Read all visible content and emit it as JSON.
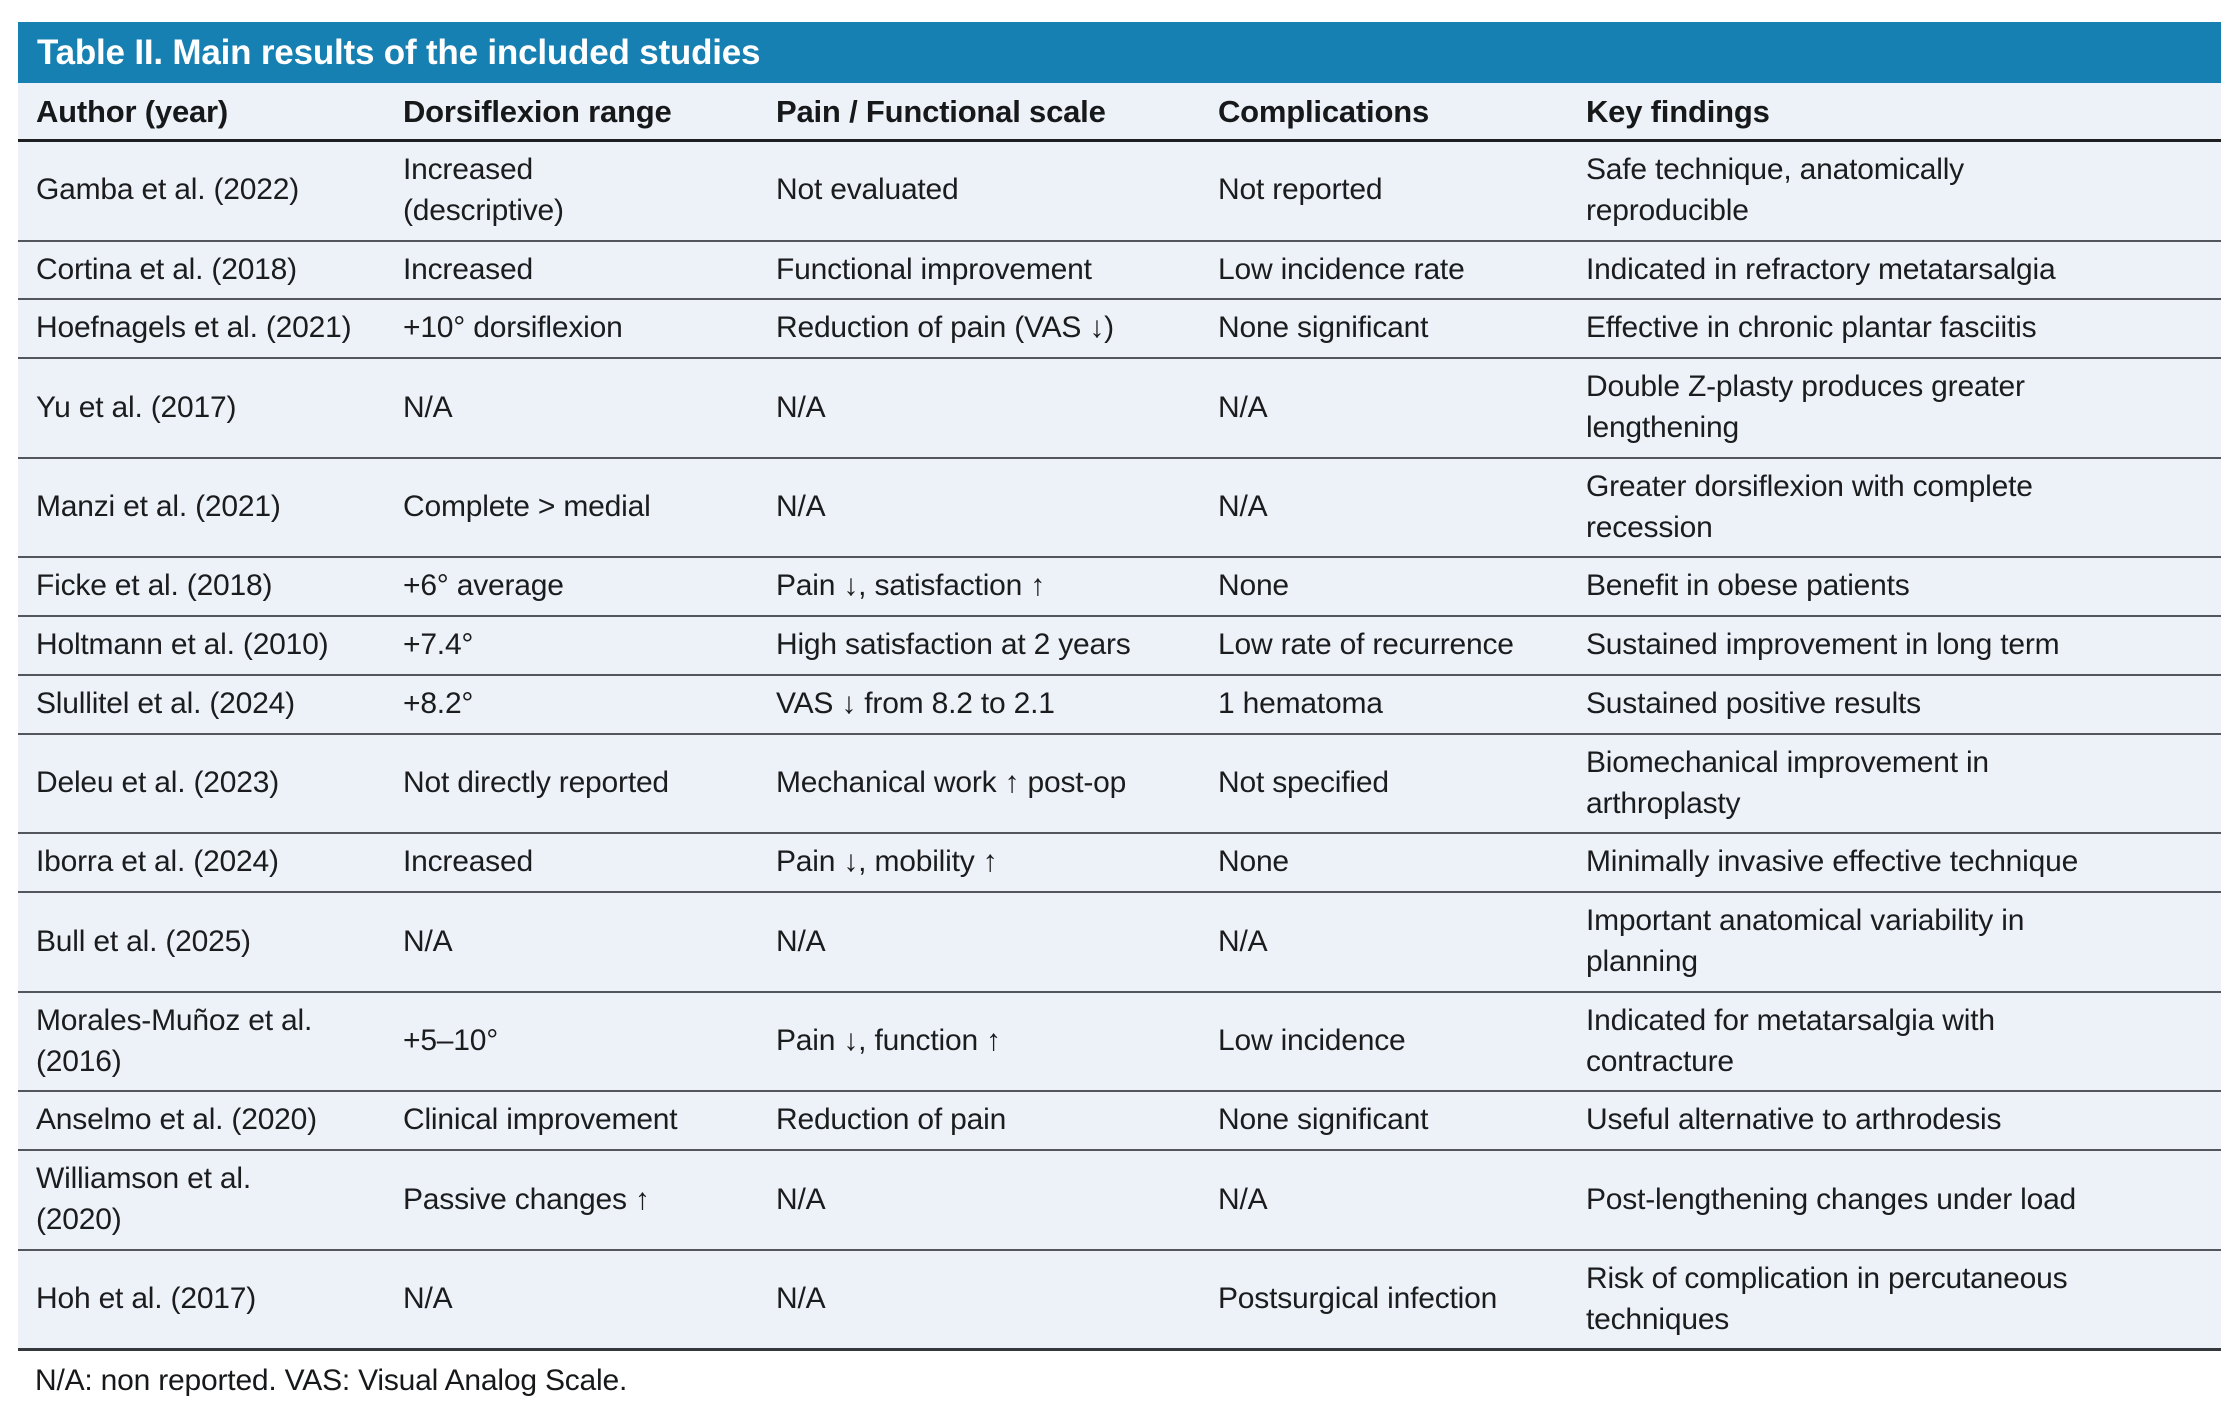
{
  "table": {
    "title": "Table II. Main results of the included studies",
    "columns": [
      "Author (year)",
      "Dorsiflexion range",
      "Pain / Functional scale",
      "Complications",
      "Key findings"
    ],
    "rows": [
      [
        "Gamba et al. (2022)",
        "Increased\n(descriptive)",
        "Not evaluated",
        "Not reported",
        "Safe technique, anatomically\nreproducible"
      ],
      [
        "Cortina et al. (2018)",
        "Increased",
        "Functional improvement",
        "Low incidence rate",
        "Indicated in refractory metatarsalgia"
      ],
      [
        "Hoefnagels et al. (2021)",
        "+10° dorsiflexion",
        "Reduction of pain (VAS ↓)",
        "None significant",
        "Effective in chronic plantar fasciitis"
      ],
      [
        "Yu et al. (2017)",
        "N/A",
        "N/A",
        "N/A",
        "Double Z-plasty produces greater\nlengthening"
      ],
      [
        "Manzi et al. (2021)",
        "Complete > medial",
        "N/A",
        "N/A",
        "Greater dorsiflexion with complete\nrecession"
      ],
      [
        "Ficke et al. (2018)",
        "+6° average",
        "Pain ↓, satisfaction ↑",
        "None",
        "Benefit in obese patients"
      ],
      [
        "Holtmann et al. (2010)",
        "+7.4°",
        "High satisfaction at 2 years",
        "Low rate of recurrence",
        "Sustained improvement in long term"
      ],
      [
        "Slullitel et al. (2024)",
        "+8.2°",
        "VAS ↓ from 8.2 to 2.1",
        "1 hematoma",
        "Sustained positive results"
      ],
      [
        "Deleu et al. (2023)",
        "Not directly reported",
        "Mechanical work ↑ post-op",
        "Not specified",
        "Biomechanical improvement in\narthroplasty"
      ],
      [
        "Iborra et al. (2024)",
        "Increased",
        "Pain ↓, mobility ↑",
        "None",
        "Minimally invasive effective technique"
      ],
      [
        "Bull et al. (2025)",
        "N/A",
        "N/A",
        "N/A",
        "Important anatomical variability in\nplanning"
      ],
      [
        "Morales-Muñoz et al.\n(2016)",
        "+5–10°",
        "Pain ↓, function ↑",
        "Low incidence",
        "Indicated for metatarsalgia with\ncontracture"
      ],
      [
        "Anselmo et al. (2020)",
        "Clinical improvement",
        "Reduction of pain",
        "None significant",
        "Useful alternative to arthrodesis"
      ],
      [
        "Williamson et al.\n(2020)",
        "Passive changes ↑",
        "N/A",
        "N/A",
        "Post-lengthening changes under load"
      ],
      [
        "Hoh et al. (2017)",
        "N/A",
        "N/A",
        "Postsurgical infection",
        "Risk of complication in percutaneous\ntechniques"
      ]
    ],
    "footnote": "N/A: non reported. VAS: Visual Analog Scale."
  },
  "colors": {
    "title_bar_background": "#1780b2",
    "title_text": "#ffffff",
    "table_background": "#edf1f8",
    "body_text": "#1b1c1e",
    "row_divider": "#53575d",
    "header_divider": "#1d1f21"
  }
}
